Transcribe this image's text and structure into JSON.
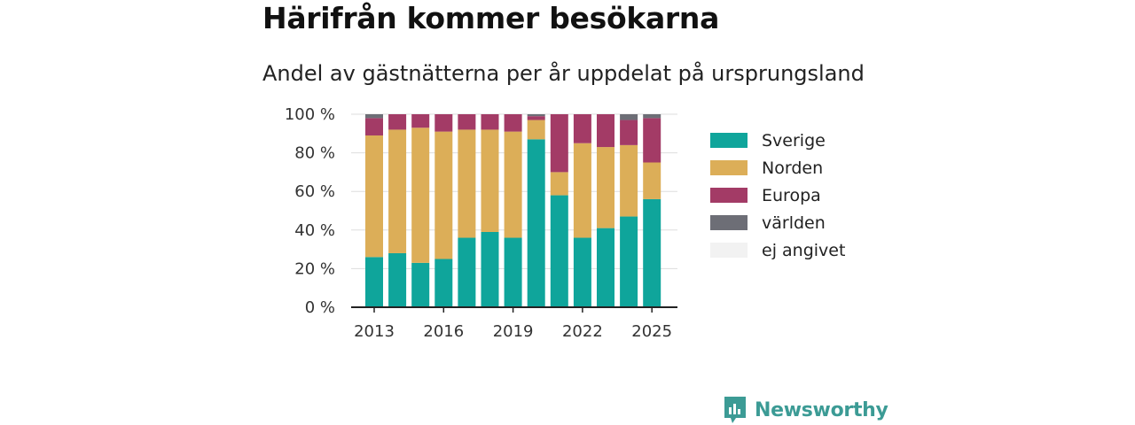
{
  "header": {
    "title": "Härifrån kommer besökarna",
    "subtitle": "Andel av gästnätterna per år uppdelat på ursprungsland"
  },
  "brand": {
    "name": "Newsworthy",
    "color": "#3c9b95"
  },
  "chart_data": {
    "type": "bar",
    "stacked": true,
    "years": [
      2013,
      2014,
      2015,
      2016,
      2017,
      2018,
      2019,
      2020,
      2021,
      2022,
      2023,
      2024,
      2025
    ],
    "x_ticks": [
      "2013",
      "2016",
      "2019",
      "2022",
      "2025"
    ],
    "y_ticks": [
      "0 %",
      "20 %",
      "40 %",
      "60 %",
      "80 %",
      "100 %"
    ],
    "ylim": [
      0,
      100
    ],
    "grid": true,
    "legend_position": "right",
    "series": [
      {
        "name": "Sverige",
        "color": "#0fa59b",
        "values": [
          26,
          28,
          23,
          25,
          36,
          39,
          36,
          87,
          58,
          36,
          41,
          47,
          56
        ]
      },
      {
        "name": "Norden",
        "color": "#dcae58",
        "values": [
          63,
          64,
          70,
          66,
          56,
          53,
          55,
          10,
          12,
          49,
          42,
          37,
          19
        ]
      },
      {
        "name": "Europa",
        "color": "#a33b66",
        "values": [
          9,
          8,
          7,
          9,
          8,
          8,
          9,
          2,
          30,
          15,
          17,
          13,
          23
        ]
      },
      {
        "name": "världen",
        "color": "#6d6e76",
        "values": [
          2,
          0,
          0,
          0,
          0,
          0,
          0,
          1,
          0,
          0,
          0,
          3,
          2
        ]
      },
      {
        "name": "ej angivet",
        "color": "#f2f2f2",
        "values": [
          0,
          0,
          0,
          0,
          0,
          0,
          0,
          0,
          0,
          0,
          0,
          0,
          0
        ]
      }
    ]
  }
}
